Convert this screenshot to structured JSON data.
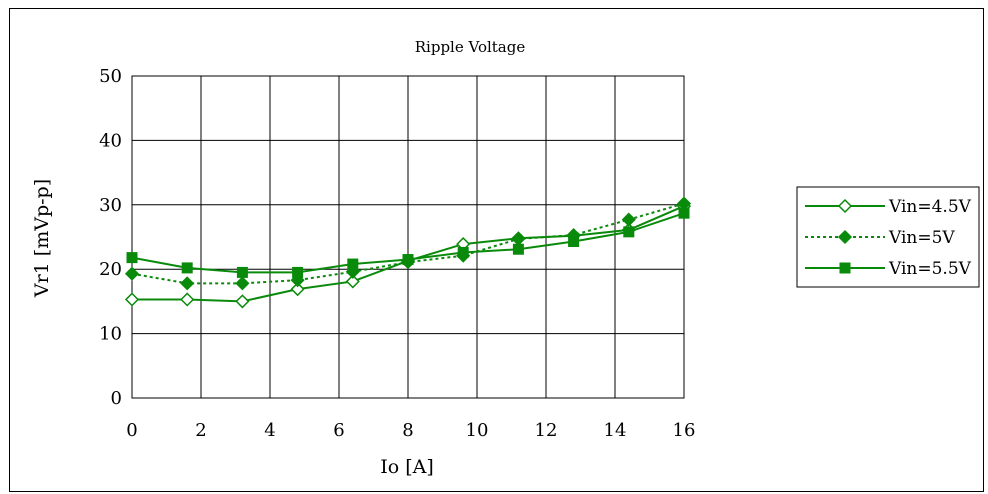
{
  "chart_data": {
    "type": "line",
    "title": "Ripple Voltage",
    "xlabel": "Io [A]",
    "ylabel": "Vr1 [mVp-p]",
    "xlim": [
      0,
      16
    ],
    "ylim": [
      0,
      50
    ],
    "xticks": [
      0,
      2,
      4,
      6,
      8,
      10,
      12,
      14,
      16
    ],
    "yticks": [
      0,
      10,
      20,
      30,
      40,
      50
    ],
    "grid": true,
    "legend_position": "right",
    "line_color": "#0a8a0a",
    "series": [
      {
        "name": "Vin=4.5V",
        "marker": "diamond-open",
        "line_style": "solid",
        "x": [
          0,
          1.6,
          3.2,
          4.8,
          6.4,
          8.0,
          9.6,
          11.2,
          12.8,
          14.4,
          16.0
        ],
        "y": [
          15.3,
          15.3,
          15.0,
          16.9,
          18.1,
          21.3,
          23.9,
          24.8,
          25.2,
          26.1,
          29.8
        ]
      },
      {
        "name": "Vin=5V",
        "marker": "diamond-filled",
        "line_style": "dotted",
        "x": [
          0,
          1.6,
          3.2,
          4.8,
          6.4,
          8.0,
          9.6,
          11.2,
          12.8,
          14.4,
          16.0
        ],
        "y": [
          19.3,
          17.8,
          17.8,
          18.3,
          19.6,
          21.1,
          22.1,
          24.7,
          25.3,
          27.7,
          30.2
        ]
      },
      {
        "name": "Vin=5.5V",
        "marker": "square-filled",
        "line_style": "solid",
        "x": [
          0,
          1.6,
          3.2,
          4.8,
          6.4,
          8.0,
          9.6,
          11.2,
          12.8,
          14.4,
          16.0
        ],
        "y": [
          21.8,
          20.2,
          19.5,
          19.5,
          20.8,
          21.5,
          22.6,
          23.1,
          24.3,
          25.8,
          28.7
        ]
      }
    ]
  }
}
